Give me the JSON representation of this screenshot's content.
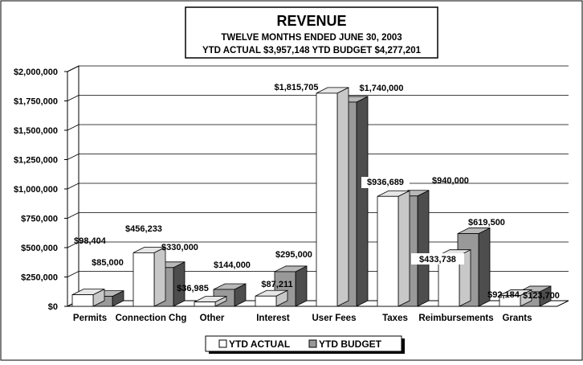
{
  "chart_data": {
    "type": "bar",
    "title": "REVENUE",
    "subtitle": "TWELVE MONTHS ENDED JUNE 30, 2003",
    "summary": "YTD ACTUAL $3,957,148  YTD BUDGET $4,277,201",
    "categories": [
      "Permits",
      "Connection Chg",
      "Other",
      "Interest",
      "User Fees",
      "Taxes",
      "Reimbursements",
      "Grants"
    ],
    "series": [
      {
        "name": "YTD ACTUAL",
        "values": [
          98404,
          456233,
          36985,
          87211,
          1815705,
          936689,
          433738,
          92184
        ],
        "labels": [
          "$98,404",
          "$456,233",
          "$36,985",
          "$87,211",
          "$1,815,705",
          "$936,689",
          "$433,738",
          "$92,184"
        ]
      },
      {
        "name": "YTD BUDGET",
        "values": [
          85000,
          330000,
          144000,
          295000,
          1740000,
          940000,
          619500,
          123700
        ],
        "labels": [
          "$85,000",
          "$330,000",
          "$144,000",
          "$295,000",
          "$1,740,000",
          "$940,000",
          "$619,500",
          "$123,700"
        ]
      }
    ],
    "y_ticks": [
      "$0",
      "$250,000",
      "$500,000",
      "$750,000",
      "$1,000,000",
      "$1,250,000",
      "$1,500,000",
      "$1,750,000",
      "$2,000,000"
    ],
    "ylim": [
      0,
      2000000
    ],
    "grid": true,
    "legend_position": "bottom-center",
    "colors": {
      "actual_front": "#ffffff",
      "actual_top": "#e6e6e6",
      "actual_side": "#c8c8c8",
      "budget_front": "#999999",
      "budget_top": "#b8b8b8",
      "budget_side": "#4d4d4d",
      "grid": "#000000"
    }
  }
}
